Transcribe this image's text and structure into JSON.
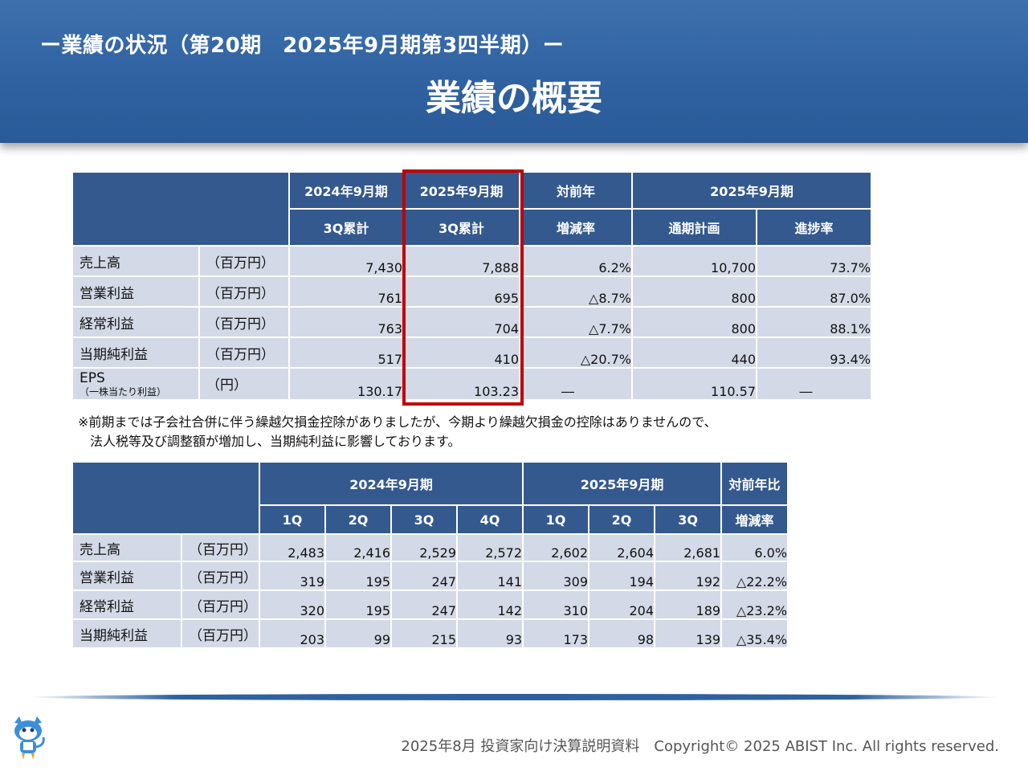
{
  "header": {
    "subtitle": "ー業績の状況（第20期　2025年9月期第3四半期）ー",
    "title": "業績の概要"
  },
  "table1": {
    "head_row1": [
      "2024年9月期",
      "2025年9月期",
      "対前年",
      "2025年9月期"
    ],
    "head_row2": [
      "3Q累計",
      "3Q累計",
      "増減率",
      "通期計画",
      "進捗率"
    ],
    "rows": [
      {
        "label": "売上高",
        "unit": "（百万円）",
        "v": [
          "7,430",
          "7,888",
          "6.2%",
          "10,700",
          "73.7%"
        ]
      },
      {
        "label": "営業利益",
        "unit": "（百万円）",
        "v": [
          "761",
          "695",
          "△8.7%",
          "800",
          "87.0%"
        ]
      },
      {
        "label": "経常利益",
        "unit": "（百万円）",
        "v": [
          "763",
          "704",
          "△7.7%",
          "800",
          "88.1%"
        ]
      },
      {
        "label": "当期純利益",
        "unit": "（百万円）",
        "v": [
          "517",
          "410",
          "△20.7%",
          "440",
          "93.4%"
        ]
      },
      {
        "label": "EPS",
        "sublabel": "（一株当たり利益）",
        "unit": "（円）",
        "v": [
          "130.17",
          "103.23",
          "―",
          "110.57",
          "―"
        ]
      }
    ]
  },
  "note": {
    "line1": "※前期までは子会社合併に伴う繰越欠損金控除がありましたが、今期より繰越欠損金の控除はありませんので、",
    "line2": "法人税等及び調整額が増加し、当期純利益に影響しております。"
  },
  "table2": {
    "head_row1": [
      "2024年9月期",
      "2025年9月期",
      "対前年比"
    ],
    "head_row2": [
      "1Q",
      "2Q",
      "3Q",
      "4Q",
      "1Q",
      "2Q",
      "3Q",
      "増減率"
    ],
    "rows": [
      {
        "label": "売上高",
        "unit": "（百万円）",
        "v": [
          "2,483",
          "2,416",
          "2,529",
          "2,572",
          "2,602",
          "2,604",
          "2,681",
          "6.0%"
        ]
      },
      {
        "label": "営業利益",
        "unit": "（百万円）",
        "v": [
          "319",
          "195",
          "247",
          "141",
          "309",
          "194",
          "192",
          "△22.2%"
        ]
      },
      {
        "label": "経常利益",
        "unit": "（百万円）",
        "v": [
          "320",
          "195",
          "247",
          "142",
          "310",
          "204",
          "189",
          "△23.2%"
        ]
      },
      {
        "label": "当期純利益",
        "unit": "（百万円）",
        "v": [
          "203",
          "99",
          "215",
          "93",
          "173",
          "98",
          "139",
          "△35.4%"
        ]
      }
    ]
  },
  "footer": {
    "text": "2025年8月 投資家向け決算説明資料　Copyright© 2025 ABIST Inc. All rights reserved.",
    "mascot_icon": "cat-mascot-icon"
  },
  "colors": {
    "header_blue": "#2f61a0",
    "table_header": "#34598f",
    "cell_bg": "#d3d9e6",
    "highlight": "#c00000"
  }
}
